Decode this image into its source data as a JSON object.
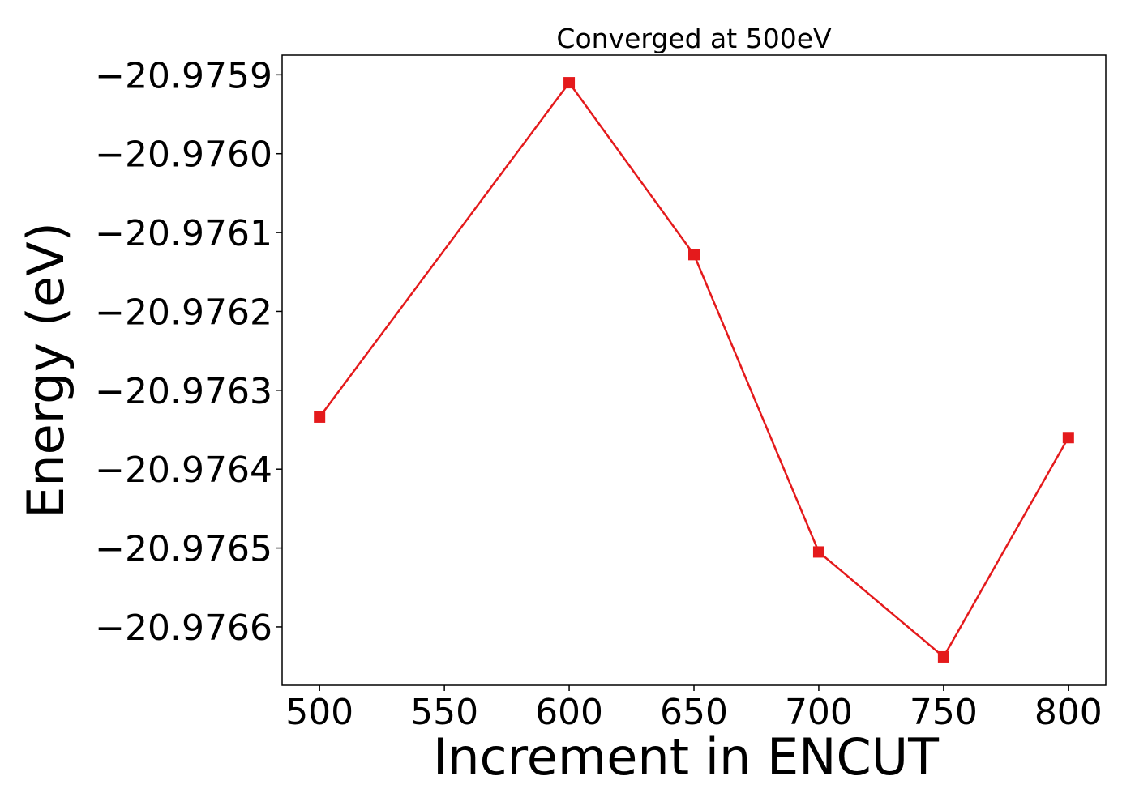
{
  "chart_data": {
    "type": "line",
    "title": "Converged at 500eV",
    "xlabel": "Increment in ENCUT",
    "ylabel": "Energy (eV)",
    "x": [
      500,
      600,
      650,
      700,
      750,
      800
    ],
    "series": [
      {
        "values": [
          -20.976334,
          -20.97591,
          -20.976128,
          -20.976505,
          -20.976638,
          -20.97636
        ],
        "color": "#e41a1c",
        "marker": "square"
      }
    ],
    "xlim": [
      485,
      815
    ],
    "ylim": [
      -20.976674,
      -20.975875
    ],
    "xticks": [
      500,
      550,
      600,
      650,
      700,
      750,
      800
    ],
    "xtick_labels": [
      "500",
      "550",
      "600",
      "650",
      "700",
      "750",
      "800"
    ],
    "yticks": [
      -20.9759,
      -20.976,
      -20.9761,
      -20.9762,
      -20.9763,
      -20.9764,
      -20.9765,
      -20.9766
    ],
    "ytick_labels": [
      "−20.9759",
      "−20.9760",
      "−20.9761",
      "−20.9762",
      "−20.9763",
      "−20.9764",
      "−20.9765",
      "−20.9766"
    ],
    "grid": false,
    "legend": "none"
  }
}
